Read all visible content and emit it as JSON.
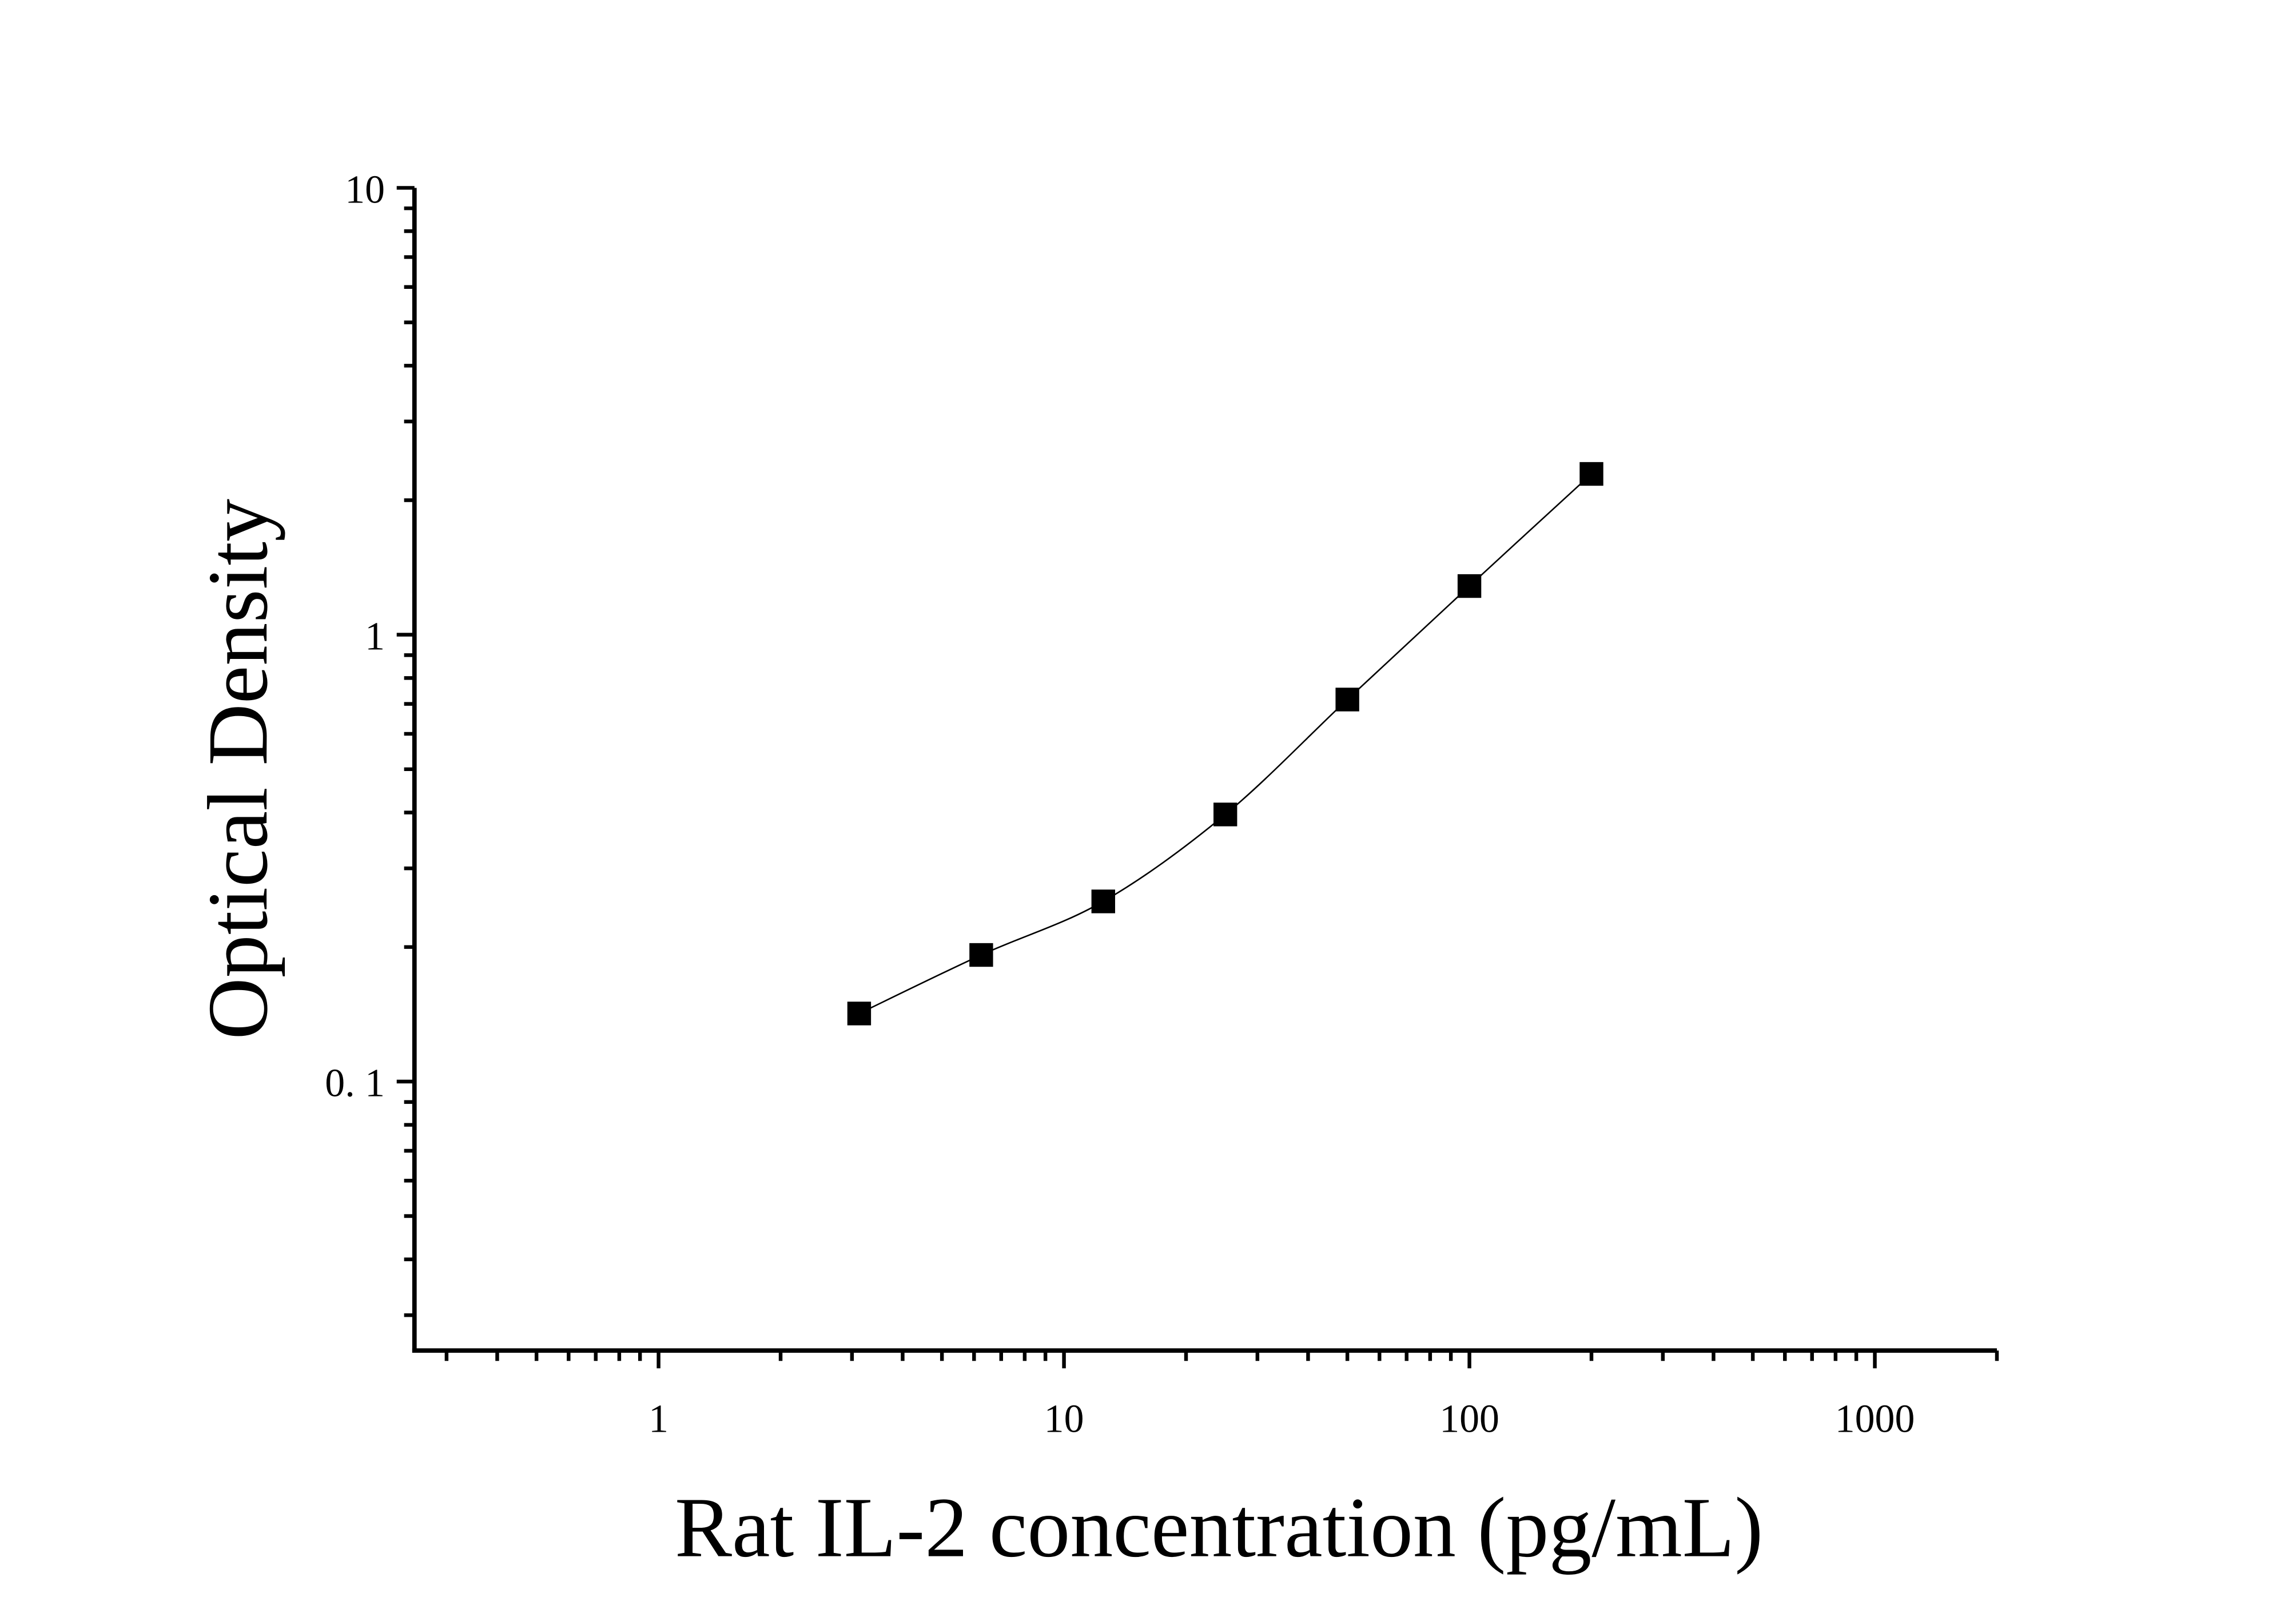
{
  "chart_data": {
    "type": "scatter",
    "title": "",
    "xlabel": "Rat IL-2 concentration (pg/mL)",
    "ylabel": "Optical Density",
    "x_scale": "log",
    "y_scale": "log",
    "xlim": [
      0.25,
      2000
    ],
    "ylim": [
      0.025,
      10
    ],
    "x_ticks": [
      {
        "value": 1,
        "label": "1"
      },
      {
        "value": 10,
        "label": "10"
      },
      {
        "value": 100,
        "label": "100"
      },
      {
        "value": 1000,
        "label": "1000"
      }
    ],
    "y_ticks": [
      {
        "value": 0.1,
        "label": "0. 1"
      },
      {
        "value": 1,
        "label": "1"
      },
      {
        "value": 10,
        "label": "10"
      }
    ],
    "grid": false,
    "marker": "square",
    "fit_curve": true,
    "color": "#000000",
    "series": [
      {
        "x": [
          3.125,
          6.25,
          12.5,
          25,
          50,
          100,
          200
        ],
        "y": [
          0.142,
          0.192,
          0.253,
          0.396,
          0.716,
          1.285,
          2.29
        ]
      }
    ]
  }
}
